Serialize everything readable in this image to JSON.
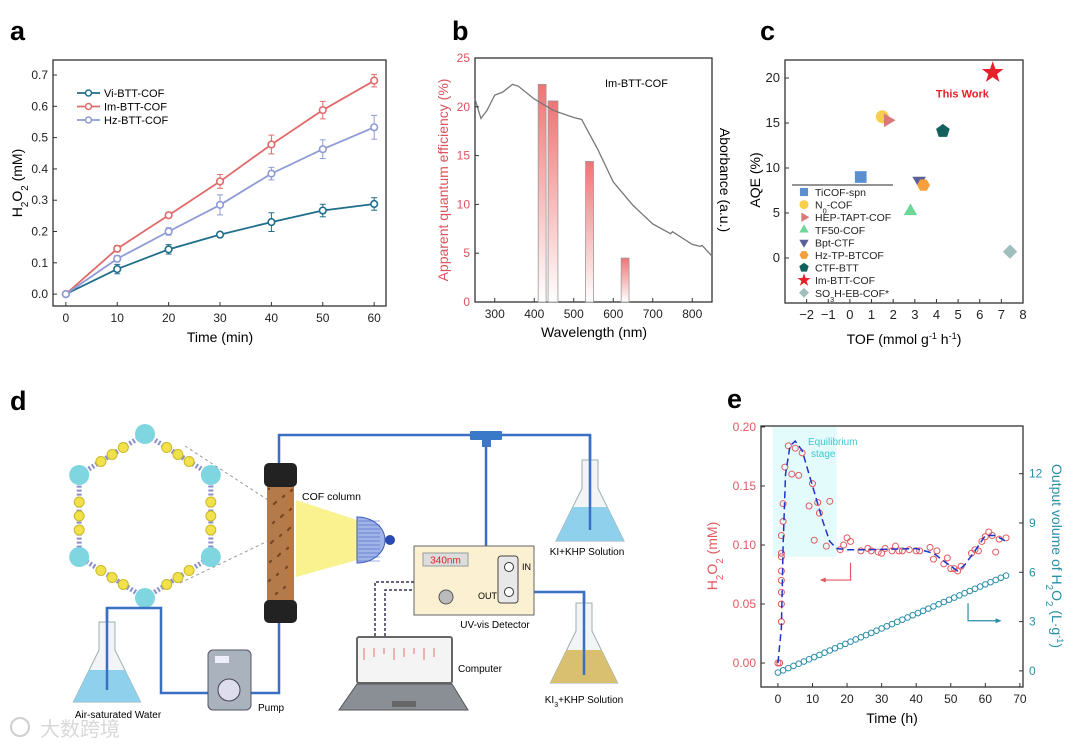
{
  "panel_labels": [
    "a",
    "b",
    "c",
    "d",
    "e"
  ],
  "chart_data": [
    {
      "type": "line",
      "panel": "a",
      "xlabel": "Time (min)",
      "ylabel": [
        {
          "t": "H"
        },
        {
          "t": "2",
          "sub": true
        },
        {
          "t": "O"
        },
        {
          "t": "2",
          "sub": true
        },
        {
          "t": " (mM)"
        }
      ],
      "xlim": [
        -2.5,
        62.3
      ],
      "ylim": [
        -0.038,
        0.748
      ],
      "xticks": [
        0,
        10,
        20,
        30,
        40,
        50,
        60
      ],
      "xtick_labels": [
        "0",
        "10",
        "20",
        "30",
        "40",
        "50",
        "60"
      ],
      "yticks": [
        0,
        0.1,
        0.2,
        0.3,
        0.4,
        0.5,
        0.6,
        0.7
      ],
      "ytick_labels": [
        "0.0",
        "0.1",
        "0.2",
        "0.3",
        "0.4",
        "0.5",
        "0.6",
        "0.7"
      ],
      "legend_position": "top-left",
      "x": [
        0,
        10,
        20,
        30,
        40,
        50,
        60
      ],
      "series": [
        {
          "name": "Vi-BTT-COF",
          "color": "#1f6e8c",
          "values": [
            0,
            0.08,
            0.143,
            0.19,
            0.23,
            0.267,
            0.288
          ],
          "errors": [
            0,
            0.015,
            0.015,
            0.008,
            0.03,
            0.02,
            0.02
          ]
        },
        {
          "name": "Im-BTT-COF",
          "color": "#e06b6b",
          "values": [
            0,
            0.145,
            0.252,
            0.36,
            0.478,
            0.588,
            0.682
          ],
          "errors": [
            0,
            0.01,
            0.008,
            0.022,
            0.03,
            0.028,
            0.02
          ]
        },
        {
          "name": "Hz-BTT-COF",
          "color": "#8f9bd6",
          "values": [
            0,
            0.113,
            0.2,
            0.285,
            0.385,
            0.463,
            0.533
          ],
          "errors": [
            0,
            0.01,
            0.012,
            0.032,
            0.02,
            0.03,
            0.038
          ]
        }
      ]
    },
    {
      "type": "bar",
      "panel": "b",
      "annotation": "Im-BTT-COF",
      "xlabel": "Wavelength (nm)",
      "ylabel": "Apparent quantum efficiency (%)",
      "ylabel_right": "Aborbance (a.u.)",
      "xlim": [
        250,
        850
      ],
      "ylim": [
        0,
        25
      ],
      "xticks": [
        300,
        400,
        500,
        600,
        700,
        800
      ],
      "xtick_labels": [
        "300",
        "400",
        "500",
        "600",
        "700",
        "800"
      ],
      "yticks": [
        0,
        5,
        10,
        15,
        20,
        25
      ],
      "ytick_labels": [
        "0",
        "5",
        "10",
        "15",
        "20",
        "25"
      ],
      "bars": [
        {
          "from": 410,
          "to": 430,
          "value": 22.3
        },
        {
          "from": 435,
          "to": 460,
          "value": 20.6
        },
        {
          "from": 530,
          "to": 550,
          "value": 14.4
        },
        {
          "from": 620,
          "to": 640,
          "value": 4.5
        }
      ],
      "bar_color": "#f07474",
      "absorbance_curve": {
        "color": "#777777",
        "x": [
          250,
          265,
          280,
          300,
          320,
          345,
          360,
          400,
          450,
          500,
          520,
          560,
          600,
          650,
          700,
          745,
          750,
          800,
          820,
          825,
          850
        ],
        "y": [
          20.8,
          18.8,
          19.6,
          21.2,
          21.5,
          22.3,
          22.1,
          20.8,
          19.6,
          18.9,
          18.7,
          15.7,
          12.3,
          9.9,
          8.0,
          7.0,
          7.2,
          5.9,
          5.7,
          5.8,
          4.7
        ]
      },
      "right_axis_ticks": "none"
    },
    {
      "type": "scatter",
      "panel": "c",
      "xlabel": [
        {
          "t": "TOF (mmol g"
        },
        {
          "t": "-1",
          "sup": true
        },
        {
          "t": " h"
        },
        {
          "t": "-1",
          "sup": true
        },
        {
          "t": ")"
        }
      ],
      "ylabel": "AQE (%)",
      "xlim": [
        -3,
        8
      ],
      "ylim": [
        -5,
        22
      ],
      "xticks": [
        -2,
        -1,
        0,
        1,
        2,
        3,
        4,
        5,
        6,
        7,
        8
      ],
      "xtick_labels": [
        "−2",
        "−1",
        "0",
        "1",
        "2",
        "3",
        "4",
        "5",
        "6",
        "7",
        "8"
      ],
      "yticks": [
        0,
        5,
        10,
        15,
        20
      ],
      "ytick_labels": [
        "0",
        "5",
        "10",
        "15",
        "20"
      ],
      "legend_position": "bottom-left",
      "annotation": {
        "text": "This Work",
        "color": "#e8202a",
        "x": 5.2,
        "y": 18.3
      },
      "points": [
        {
          "name": [
            {
              "t": "TiCOF-spn"
            }
          ],
          "x": 0.5,
          "y": 9.0,
          "marker": "square",
          "color": "#5b8fd0"
        },
        {
          "name": [
            {
              "t": "N"
            },
            {
              "t": "0",
              "sub": true
            },
            {
              "t": "-COF"
            }
          ],
          "x": 1.5,
          "y": 15.7,
          "marker": "circle",
          "color": "#f7cf4a"
        },
        {
          "name": [
            {
              "t": "HEP-TAPT-COF"
            }
          ],
          "x": 1.75,
          "y": 15.3,
          "marker": "triangle-right",
          "color": "#d97a78"
        },
        {
          "name": [
            {
              "t": "TF50-COF"
            }
          ],
          "x": 2.8,
          "y": 5.2,
          "marker": "triangle-up",
          "color": "#6fd69a"
        },
        {
          "name": [
            {
              "t": "Bpt-CTF"
            }
          ],
          "x": 3.2,
          "y": 8.6,
          "marker": "triangle-down",
          "color": "#5a5f9a"
        },
        {
          "name": [
            {
              "t": "Hz-TP-BTCOF"
            }
          ],
          "x": 3.4,
          "y": 8.1,
          "marker": "hexagon",
          "color": "#f5a03a"
        },
        {
          "name": [
            {
              "t": "CTF-BTT"
            }
          ],
          "x": 4.3,
          "y": 14.1,
          "marker": "pentagon",
          "color": "#13615e"
        },
        {
          "name": [
            {
              "t": " Im-BTT-COF"
            }
          ],
          "x": 6.6,
          "y": 20.6,
          "marker": "star",
          "color": "#e8202a"
        },
        {
          "name": [
            {
              "t": "SO"
            },
            {
              "t": "3",
              "sub": true
            },
            {
              "t": "H-EB-COF*"
            }
          ],
          "x": 7.4,
          "y": 0.7,
          "marker": "diamond",
          "color": "#9fbfbd"
        }
      ]
    },
    {
      "type": "scatter",
      "panel": "e",
      "xlabel": "Time (h)",
      "ylabel": [
        {
          "t": "H"
        },
        {
          "t": "2",
          "sub": true
        },
        {
          "t": "O"
        },
        {
          "t": "2",
          "sub": true
        },
        {
          "t": " (mM)"
        }
      ],
      "ylabel_right": [
        {
          "t": "Output volume of H"
        },
        {
          "t": "2",
          "sub": true
        },
        {
          "t": "O"
        },
        {
          "t": "2",
          "sub": true
        },
        {
          "t": " (L·g"
        },
        {
          "t": "-1",
          "sup": true
        },
        {
          "t": ")"
        }
      ],
      "xlim": [
        -4.9,
        70.9
      ],
      "ylim": [
        -0.0203,
        0.2008
      ],
      "ylim_right": [
        -0.98,
        14.9
      ],
      "xticks": [
        0,
        10,
        20,
        30,
        40,
        50,
        60,
        70
      ],
      "xtick_labels": [
        "0",
        "10",
        "20",
        "30",
        "40",
        "50",
        "60",
        "70"
      ],
      "yticks": [
        0,
        0.05,
        0.1,
        0.15,
        0.2
      ],
      "ytick_labels": [
        "0.00",
        "0.05",
        "0.10",
        "0.15",
        "0.20"
      ],
      "yticks_right": [
        0,
        3,
        6,
        9,
        12
      ],
      "ytick_labels_right": [
        "0",
        "3",
        "6",
        "9",
        "12"
      ],
      "left_color": "#e05a60",
      "right_color": "#2a8fa8",
      "annotation": [
        "Equilibrium",
        "stage"
      ],
      "equilibrium_region": {
        "x": [
          -1.5,
          17
        ],
        "y": [
          0.09,
          0.2
        ]
      },
      "h2o2_points": {
        "x": [
          0,
          0.5,
          1,
          1,
          1,
          1,
          1,
          1,
          1,
          1,
          1.5,
          1.5,
          2,
          3,
          4,
          5,
          6,
          7,
          9,
          10,
          10.5,
          11.5,
          12,
          14,
          15,
          18,
          19,
          20,
          21,
          24,
          26,
          27,
          29,
          30,
          31,
          33,
          34,
          35,
          36,
          38,
          40,
          41,
          44,
          45,
          46,
          48,
          49,
          50,
          51,
          52,
          53,
          56,
          57,
          58,
          59,
          60,
          61,
          62,
          63,
          64,
          66
        ],
        "y": [
          0,
          0,
          0.035,
          0.05,
          0.06,
          0.07,
          0.078,
          0.09,
          0.093,
          0.108,
          0.12,
          0.135,
          0.166,
          0.184,
          0.16,
          0.182,
          0.159,
          0.178,
          0.133,
          0.152,
          0.104,
          0.136,
          0.127,
          0.099,
          0.137,
          0.096,
          0.1,
          0.106,
          0.103,
          0.095,
          0.097,
          0.095,
          0.094,
          0.093,
          0.097,
          0.095,
          0.099,
          0.095,
          0.095,
          0.096,
          0.095,
          0.095,
          0.098,
          0.088,
          0.095,
          0.084,
          0.089,
          0.08,
          0.08,
          0.078,
          0.082,
          0.093,
          0.096,
          0.095,
          0.103,
          0.107,
          0.111,
          0.108,
          0.094,
          0.105,
          0.106
        ]
      },
      "h2o2_fit": {
        "x": [
          0,
          1,
          1.5,
          2.2,
          3.5,
          5,
          7,
          10,
          13,
          15,
          17,
          20,
          25,
          40,
          45,
          50,
          52,
          54,
          57,
          60,
          63,
          66
        ],
        "y": [
          0,
          0.03,
          0.1,
          0.16,
          0.184,
          0.188,
          0.18,
          0.15,
          0.12,
          0.103,
          0.097,
          0.096,
          0.096,
          0.097,
          0.093,
          0.082,
          0.078,
          0.083,
          0.095,
          0.108,
          0.108,
          0.103
        ]
      },
      "volume_points": {
        "t_start": 0,
        "t_end": 66,
        "count": 45,
        "v_start": -0.1,
        "v_end": 5.8
      }
    }
  ],
  "diagram": {
    "cof_column": "COF column",
    "ki_khp": "KI+KHP Solution",
    "wavelength": "340nm",
    "in_port": "IN",
    "out_port": "OUT",
    "detector": "UV-vis Detector",
    "computer": "Computer",
    "ki3_khp": [
      {
        "t": "KI"
      },
      {
        "t": "3",
        "sub": true
      },
      {
        "t": "+KHP Solution"
      }
    ],
    "pump": "Pump",
    "water": "Air-saturated Water"
  },
  "watermark": "大数跨境"
}
